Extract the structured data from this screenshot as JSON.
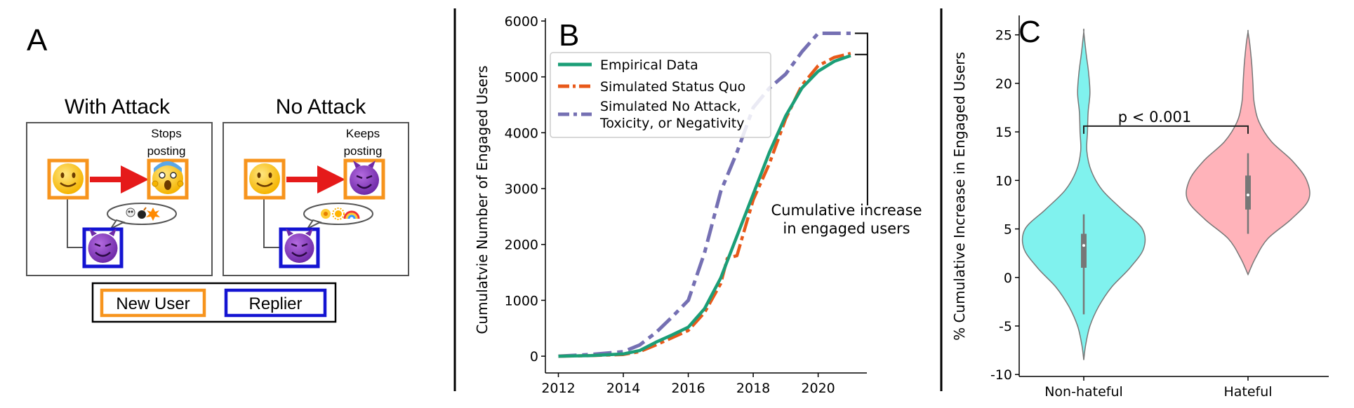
{
  "panel_a": {
    "letter": "A",
    "with_attack": {
      "title": "With Attack",
      "note_line1": "Stops",
      "note_line2": "posting",
      "new_user_icon": "smiling-face-icon",
      "result_icon": "screaming-face-icon",
      "replier_icon": "devil-face-icon",
      "bubble_icons": "skull, bomb, explosion"
    },
    "no_attack": {
      "title": "No Attack",
      "note_line1": "Keeps",
      "note_line2": "posting",
      "new_user_icon": "smiling-face-icon",
      "result_icon": "devil-face-icon",
      "replier_icon": "devil-face-icon",
      "bubble_icons": "flower, sun, rainbow"
    },
    "key": {
      "new_user": "New User",
      "replier": "Replier"
    },
    "colors": {
      "new_user": "#f7941d",
      "replier": "#1414d2",
      "arrow": "#e51a1a"
    }
  },
  "panel_b": {
    "letter": "B"
  },
  "panel_c": {
    "letter": "C"
  },
  "chart_data": [
    {
      "type": "line",
      "panel": "B",
      "title": "",
      "xlabel": "",
      "ylabel": "Cumulatvie Number of Engaged Users",
      "xlim": [
        2011.6,
        2021.5
      ],
      "ylim": [
        -300,
        6050
      ],
      "xticks": [
        "2012",
        "2014",
        "2016",
        "2018",
        "2020"
      ],
      "xtick_values": [
        2012,
        2014,
        2016,
        2018,
        2020
      ],
      "yticks": [
        "0",
        "1000",
        "2000",
        "3000",
        "4000",
        "5000",
        "6000"
      ],
      "ytick_values": [
        0,
        1000,
        2000,
        3000,
        4000,
        5000,
        6000
      ],
      "legend_position": "upper-left",
      "annotation_line1": "Cumulative increase",
      "annotation_line2": "in engaged users",
      "series": [
        {
          "name": "Empirical Data",
          "color": "#1b9e77",
          "style": "solid",
          "x": [
            2012,
            2013,
            2014,
            2014.5,
            2015,
            2015.5,
            2016,
            2016.5,
            2017,
            2017.5,
            2018,
            2018.5,
            2019,
            2019.5,
            2020,
            2020.5,
            2021
          ],
          "y": [
            0,
            10,
            40,
            100,
            250,
            380,
            520,
            850,
            1400,
            2150,
            2900,
            3650,
            4300,
            4800,
            5100,
            5280,
            5380
          ]
        },
        {
          "name": "Simulated Status Quo",
          "color": "#e8591a",
          "style": "dashdot",
          "x": [
            2012,
            2013,
            2014,
            2014.5,
            2015,
            2015.5,
            2016,
            2016.5,
            2017,
            2017.2,
            2017.5,
            2018,
            2018.5,
            2019,
            2019.5,
            2020,
            2020.5,
            2021
          ],
          "y": [
            0,
            10,
            30,
            80,
            200,
            330,
            460,
            780,
            1300,
            1750,
            1800,
            2800,
            3450,
            4250,
            4850,
            5200,
            5350,
            5420
          ]
        },
        {
          "name": "Simulated No Attack,\nToxicity, or Negativity",
          "legend_line1": "Simulated No Attack,",
          "legend_line2": "Toxicity, or Negativity",
          "color": "#7570b3",
          "style": "dashed",
          "x": [
            2012,
            2013,
            2014,
            2014.5,
            2015,
            2015.5,
            2016,
            2016.5,
            2017,
            2017.5,
            2018,
            2018.5,
            2019,
            2019.5,
            2020,
            2020.5,
            2021
          ],
          "y": [
            0,
            30,
            80,
            200,
            420,
            700,
            1000,
            1850,
            2950,
            3650,
            4450,
            4800,
            5050,
            5450,
            5780,
            5780,
            5780
          ]
        }
      ]
    },
    {
      "type": "violin",
      "panel": "C",
      "title": "",
      "xlabel": "",
      "ylabel": "% Cumulative Increase in Engaged Users",
      "categories": [
        "Non-hateful",
        "Hateful"
      ],
      "ylim": [
        -10.2,
        27
      ],
      "yticks": [
        "-10",
        "-5",
        "0",
        "5",
        "10",
        "15",
        "20",
        "25"
      ],
      "ytick_values": [
        -10,
        -5,
        0,
        5,
        10,
        15,
        20,
        25
      ],
      "significance": "p < 0.001",
      "series": [
        {
          "category": "Non-hateful",
          "color": "#80f2ee",
          "min": -8.5,
          "max": 25.3,
          "median": 3.3,
          "q1": 1.0,
          "q3": 4.5,
          "whisker_low": -3.8,
          "whisker_high": 6.5,
          "density_y": [
            -8.5,
            -7,
            -5,
            -3,
            -1,
            1,
            3,
            5,
            7,
            9,
            11,
            13,
            15,
            17,
            19,
            21,
            23,
            25.3
          ],
          "density_w": [
            0.0,
            0.03,
            0.1,
            0.24,
            0.45,
            0.75,
            0.97,
            0.95,
            0.62,
            0.3,
            0.12,
            0.05,
            0.06,
            0.07,
            0.1,
            0.08,
            0.04,
            0.0
          ]
        },
        {
          "category": "Hateful",
          "color": "#ffb3ba",
          "min": 0.3,
          "max": 25.3,
          "median": 8.5,
          "q1": 7.0,
          "q3": 10.5,
          "whisker_low": 4.5,
          "whisker_high": 12.8,
          "density_y": [
            0.3,
            2,
            4,
            6,
            8,
            10,
            12,
            14,
            16,
            18,
            20,
            22,
            24,
            25.3
          ],
          "density_w": [
            0.0,
            0.12,
            0.32,
            0.7,
            0.98,
            0.95,
            0.72,
            0.38,
            0.18,
            0.1,
            0.08,
            0.06,
            0.03,
            0.0
          ]
        }
      ]
    }
  ]
}
